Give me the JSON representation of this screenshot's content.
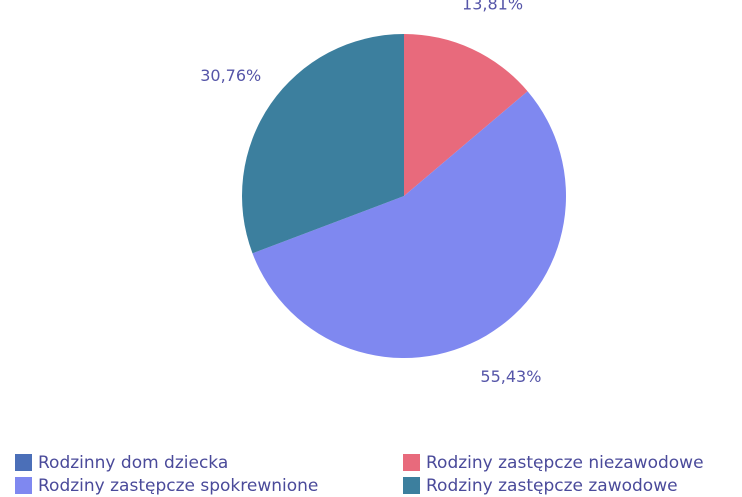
{
  "chart_data": {
    "type": "pie",
    "categories": [
      "Rodzinny dom dziecka",
      "Rodziny zastępcze niezawodowe",
      "Rodziny zastępcze spokrewnione",
      "Rodziny zastępcze zawodowe"
    ],
    "values": [
      0,
      13.81,
      55.43,
      30.76
    ],
    "value_labels": [
      null,
      "13,81%",
      "55,43%",
      "30,76%"
    ],
    "colors": [
      "#4b6fb8",
      "#e86a7c",
      "#7f88f0",
      "#3c7f9e"
    ]
  }
}
